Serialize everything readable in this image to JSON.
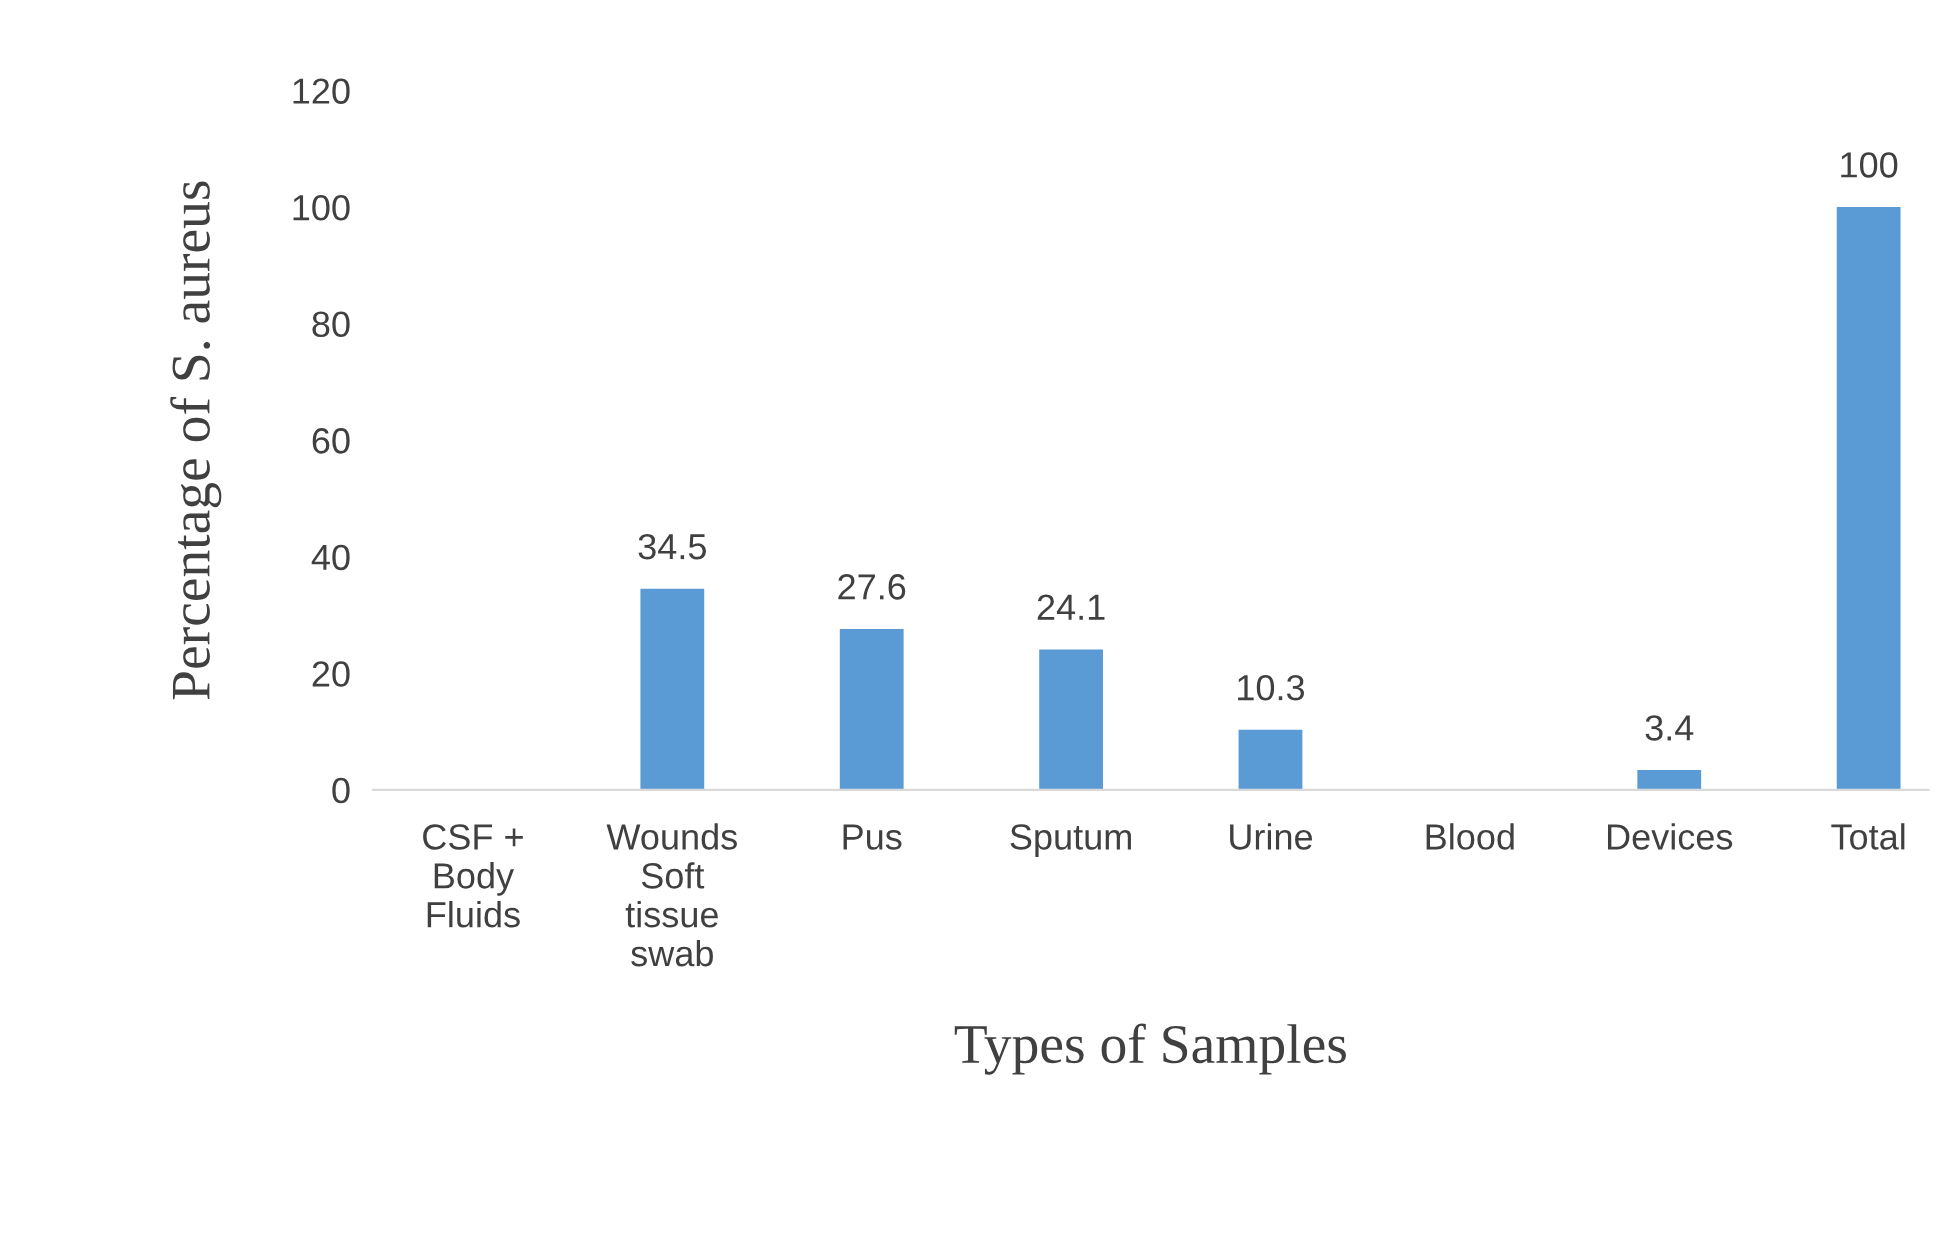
{
  "chart_data": {
    "type": "bar",
    "xlabel": "Types of Samples",
    "ylabel": "Percentage of S. aureus",
    "categories": [
      "CSF + Body Fluids",
      "Wounds Soft tissue swab",
      "Pus",
      "Sputum",
      "Urine",
      "Blood",
      "Devices",
      "Total"
    ],
    "values": [
      0,
      34.5,
      27.6,
      24.1,
      10.3,
      0,
      3.4,
      100
    ],
    "value_labels": [
      null,
      "34.5",
      "27.6",
      "24.1",
      "10.3",
      null,
      "3.4",
      "100"
    ],
    "color": "#5b9bd5",
    "ylim": [
      0,
      120
    ],
    "yticks": [
      0,
      20,
      40,
      60,
      80,
      100,
      120
    ],
    "grid": false,
    "legend": false
  }
}
